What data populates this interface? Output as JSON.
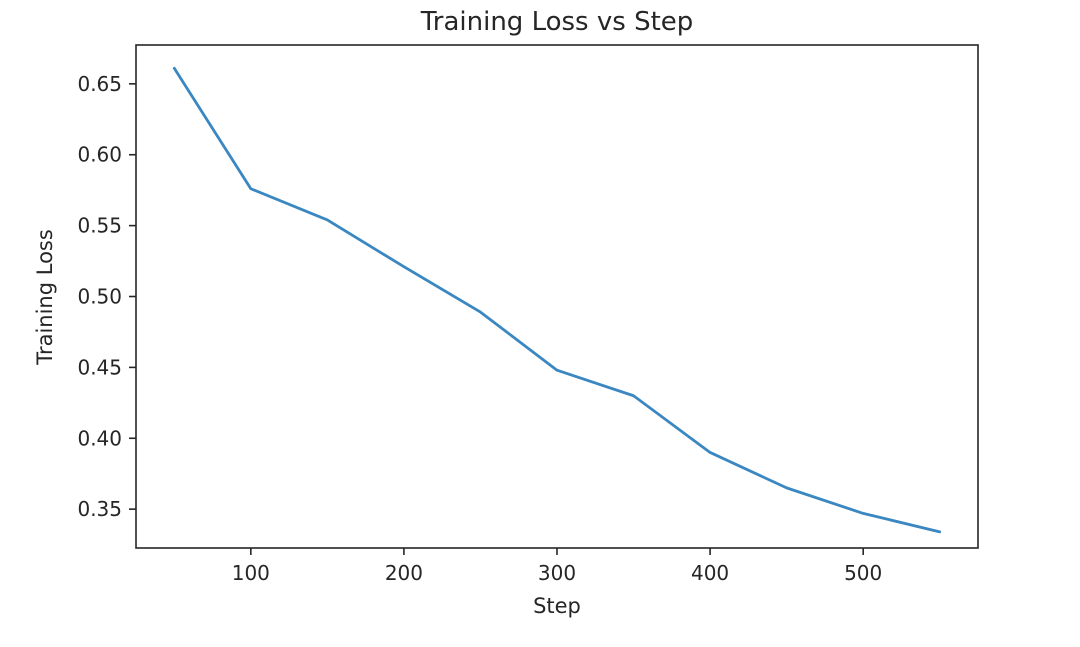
{
  "chart_data": {
    "type": "line",
    "title": "Training Loss vs Step",
    "xlabel": "Step",
    "ylabel": "Training Loss",
    "x": [
      50,
      100,
      150,
      200,
      250,
      300,
      350,
      400,
      450,
      500,
      550
    ],
    "series": [
      {
        "values": [
          0.661,
          0.576,
          0.554,
          0.521,
          0.489,
          0.448,
          0.43,
          0.39,
          0.365,
          0.347,
          0.334
        ],
        "color": "#3a87c1"
      }
    ],
    "xlim": [
      25,
      575
    ],
    "ylim": [
      0.3226,
      0.6774
    ],
    "xticks": [
      100,
      200,
      300,
      400,
      500
    ],
    "xtick_labels": [
      "100",
      "200",
      "300",
      "400",
      "500"
    ],
    "yticks": [
      0.35,
      0.4,
      0.45,
      0.5,
      0.55,
      0.6,
      0.65
    ],
    "ytick_labels": [
      "0.35",
      "0.40",
      "0.45",
      "0.50",
      "0.55",
      "0.60",
      "0.65"
    ],
    "grid": false,
    "legend": false
  }
}
